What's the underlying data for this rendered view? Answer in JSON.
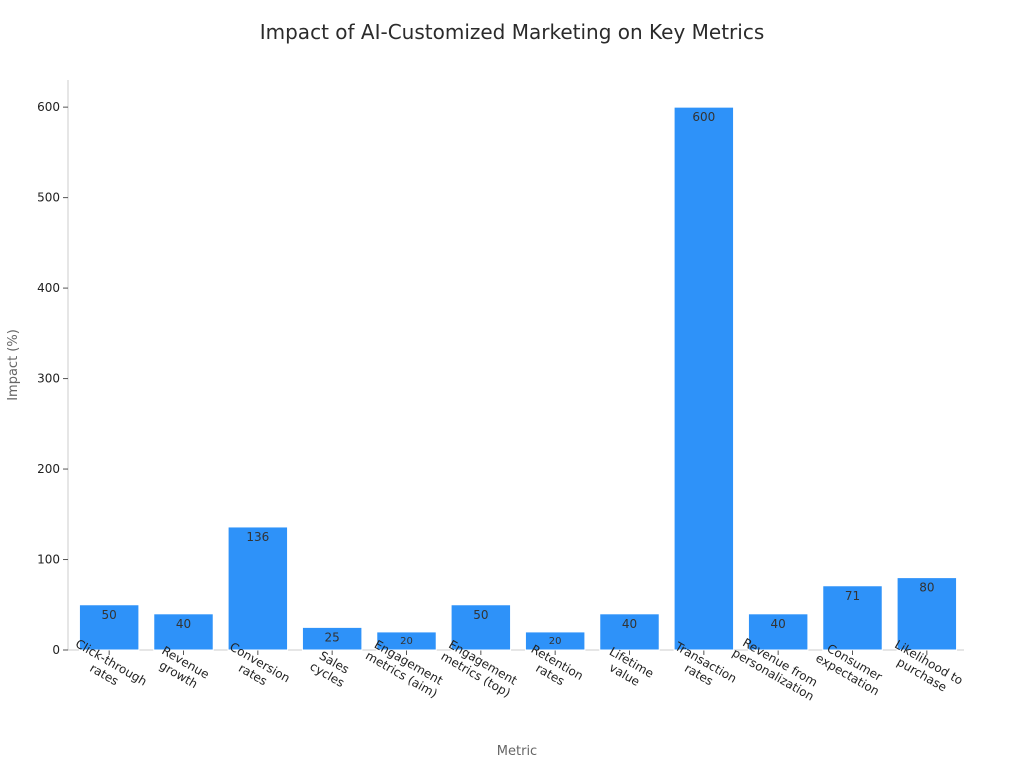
{
  "chart_data": {
    "type": "bar",
    "title": "Impact of AI-Customized Marketing on Key Metrics",
    "xlabel": "Metric",
    "ylabel": "Impact (%)",
    "ylim": [
      0,
      630
    ],
    "yticks": [
      0,
      100,
      200,
      300,
      400,
      500,
      600
    ],
    "grid": false,
    "bar_color": "#2e92f9",
    "categories": [
      "Click-through rates",
      "Revenue growth",
      "Conversion rates",
      "Sales cycles",
      "Engagement metrics (aim)",
      "Engagement metrics (top)",
      "Retention rates",
      "Lifetime value",
      "Transaction rates",
      "Revenue from personalization",
      "Consumer expectation",
      "Likelihood to purchase"
    ],
    "category_lines": [
      [
        "Click-through",
        "rates"
      ],
      [
        "Revenue",
        "growth"
      ],
      [
        "Conversion",
        "rates"
      ],
      [
        "Sales",
        "cycles"
      ],
      [
        "Engagement",
        "metrics (aim)"
      ],
      [
        "Engagement",
        "metrics (top)"
      ],
      [
        "Retention",
        "rates"
      ],
      [
        "Lifetime",
        "value"
      ],
      [
        "Transaction",
        "rates"
      ],
      [
        "Revenue from",
        "personalization"
      ],
      [
        "Consumer",
        "expectation"
      ],
      [
        "Likelihood to",
        "purchase"
      ]
    ],
    "values": [
      50,
      40,
      136,
      25,
      20,
      50,
      20,
      40,
      600,
      40,
      71,
      80
    ]
  }
}
